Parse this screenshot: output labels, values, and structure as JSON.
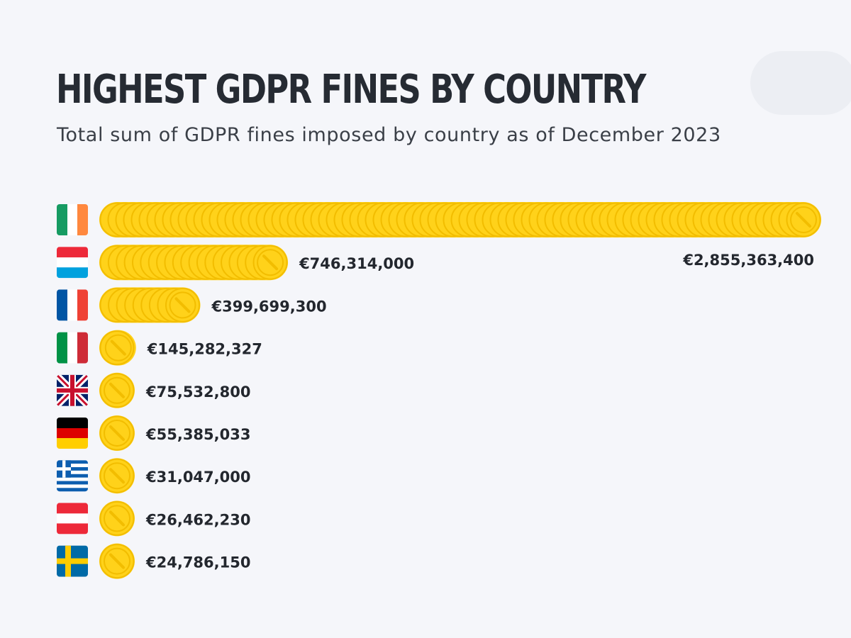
{
  "header": {
    "title": "HIGHEST GDPR FINES BY COUNTRY",
    "subtitle": "Total sum of GDPR fines imposed by country as of December 2023"
  },
  "colors": {
    "background": "#f5f6fa",
    "coin_fill": "#ffd21a",
    "coin_edge": "#f2bd00",
    "text": "#23272e"
  },
  "chart_data": {
    "type": "bar",
    "orientation": "horizontal",
    "title": "HIGHEST GDPR FINES BY COUNTRY",
    "subtitle": "Total sum of GDPR fines imposed by country as of December 2023",
    "categories": [
      "ireland-flag",
      "luxembourg-flag",
      "france-flag",
      "italy-flag",
      "united-kingdom-flag",
      "germany-flag",
      "greece-flag",
      "austria-flag",
      "sweden-flag"
    ],
    "values": [
      2855363400,
      746314000,
      399699300,
      145282327,
      75532800,
      55385033,
      31047000,
      26462230,
      24786150
    ],
    "labels": [
      "€2,855,363,400",
      "€746,314,000",
      "€399,699,300",
      "€145,282,327",
      "€75,532,800",
      "€55,385,033",
      "€31,047,000",
      "€26,462,230",
      "€24,786,150"
    ],
    "xlabel": "",
    "ylabel": "",
    "grid": false,
    "legend": "none"
  }
}
